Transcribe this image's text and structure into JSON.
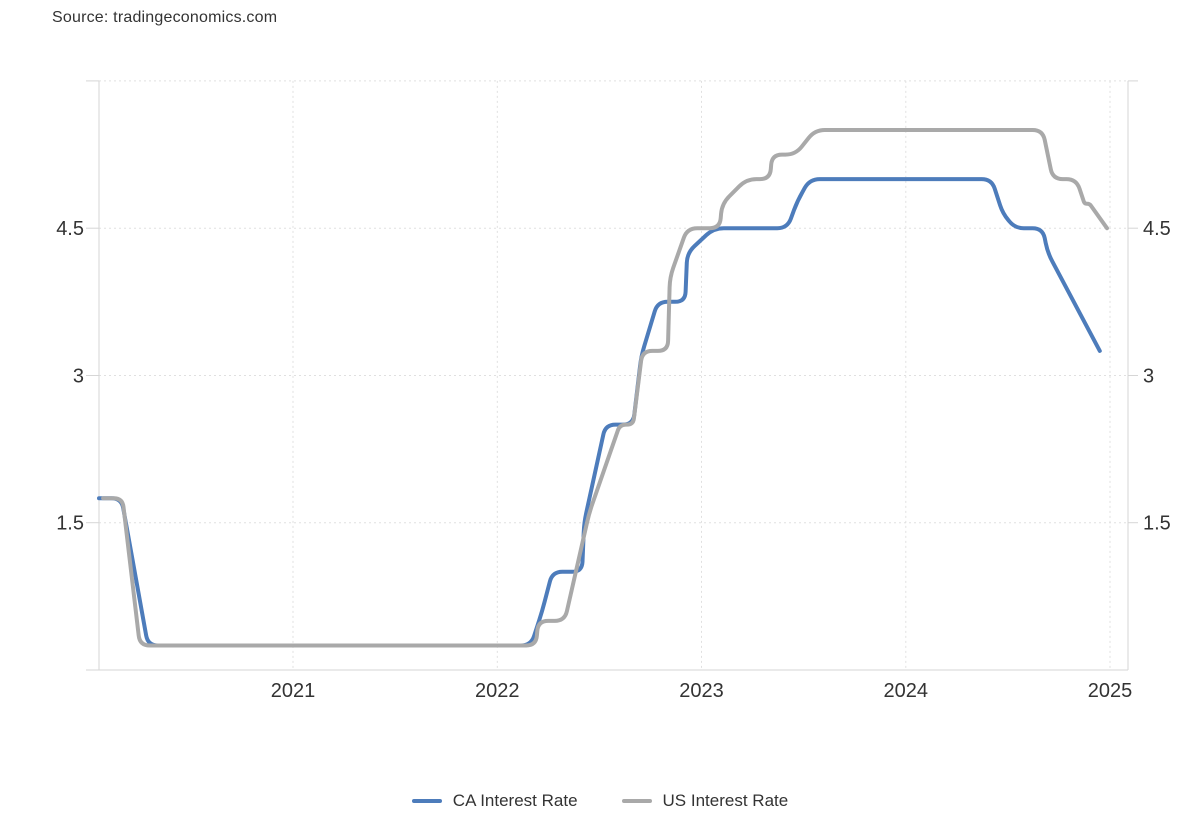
{
  "source": {
    "label": "Source: tradingeconomics.com"
  },
  "colors": {
    "ca_line": "#4d7cbb",
    "us_line": "#a9a9a9",
    "grid": "#e0e0e0",
    "axis": "#d6d6d6",
    "text": "#333333"
  },
  "legend": [
    {
      "id": "ca",
      "label": "CA Interest Rate",
      "color": "#4d7cbb"
    },
    {
      "id": "us",
      "label": "US Interest Rate",
      "color": "#a9a9a9"
    }
  ],
  "chart_data": {
    "type": "line",
    "title": "",
    "xlabel": "",
    "ylabel": "",
    "units": "%",
    "grid": "dotted",
    "legend_position": "bottom-center",
    "x_axis": {
      "range": [
        2020.05,
        2025.088
      ],
      "ticks": [
        2021,
        2022,
        2023,
        2024,
        2025
      ],
      "tick_labels": [
        "2021",
        "2022",
        "2023",
        "2024",
        "2025"
      ]
    },
    "y_axis": {
      "range": [
        0,
        6.03
      ],
      "labeled_ticks": [
        1.5,
        3,
        4.5
      ],
      "tick_labels": [
        "1.5",
        "3",
        "4.5"
      ],
      "grid_values": [
        1.5,
        3,
        4.5,
        6
      ],
      "sides": "both"
    },
    "series": [
      {
        "name": "CA Interest Rate",
        "color": "#4d7cbb",
        "points": [
          [
            2020.05,
            1.75
          ],
          [
            2020.16,
            1.75
          ],
          [
            2020.29,
            0.25
          ],
          [
            2022.165,
            0.25
          ],
          [
            2022.22,
            0.6
          ],
          [
            2022.27,
            1.0
          ],
          [
            2022.415,
            1.0
          ],
          [
            2022.425,
            1.5
          ],
          [
            2022.53,
            2.5
          ],
          [
            2022.665,
            2.5
          ],
          [
            2022.705,
            3.2
          ],
          [
            2022.785,
            3.75
          ],
          [
            2022.92,
            3.75
          ],
          [
            2022.93,
            4.25
          ],
          [
            2023.06,
            4.5
          ],
          [
            2023.42,
            4.5
          ],
          [
            2023.47,
            4.78
          ],
          [
            2023.53,
            5.0
          ],
          [
            2024.42,
            5.0
          ],
          [
            2024.475,
            4.65
          ],
          [
            2024.535,
            4.5
          ],
          [
            2024.67,
            4.5
          ],
          [
            2024.695,
            4.25
          ],
          [
            2024.95,
            3.25
          ]
        ]
      },
      {
        "name": "US Interest Rate",
        "color": "#a9a9a9",
        "points": [
          [
            2020.07,
            1.75
          ],
          [
            2020.165,
            1.75
          ],
          [
            2020.25,
            0.25
          ],
          [
            2022.19,
            0.25
          ],
          [
            2022.2,
            0.5
          ],
          [
            2022.33,
            0.5
          ],
          [
            2022.45,
            1.6
          ],
          [
            2022.6,
            2.5
          ],
          [
            2022.665,
            2.5
          ],
          [
            2022.71,
            3.25
          ],
          [
            2022.835,
            3.25
          ],
          [
            2022.845,
            4.0
          ],
          [
            2022.93,
            4.5
          ],
          [
            2023.09,
            4.5
          ],
          [
            2023.1,
            4.75
          ],
          [
            2023.22,
            5.0
          ],
          [
            2023.335,
            5.0
          ],
          [
            2023.345,
            5.25
          ],
          [
            2023.46,
            5.25
          ],
          [
            2023.555,
            5.5
          ],
          [
            2024.67,
            5.5
          ],
          [
            2024.72,
            5.0
          ],
          [
            2024.835,
            5.0
          ],
          [
            2024.875,
            4.75
          ],
          [
            2024.9,
            4.75
          ],
          [
            2024.985,
            4.5
          ]
        ]
      }
    ]
  }
}
